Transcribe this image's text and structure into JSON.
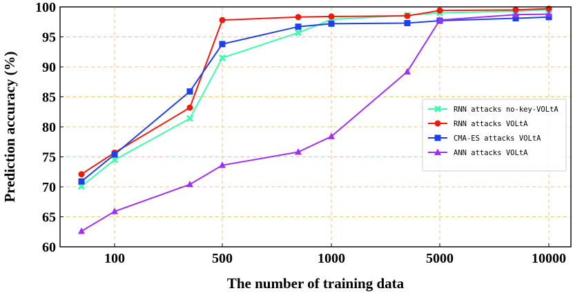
{
  "chart_data": {
    "type": "line",
    "xlabel": "The number of training data",
    "ylabel": "Prediction accuracy (%)",
    "ylim": [
      60,
      100
    ],
    "y_ticks": [
      60,
      65,
      70,
      75,
      80,
      85,
      90,
      95,
      100
    ],
    "x_tick_labels": [
      "100",
      "500",
      "1000",
      "5000",
      "10000"
    ],
    "x_positions": [
      "50",
      "100",
      "300",
      "500",
      "800",
      "1000",
      "3000",
      "5000",
      "8000",
      "10000"
    ],
    "grid": "dashed orange",
    "legend_position": "right",
    "series": [
      {
        "name": "RNN attacks no-key-VOLtA",
        "color": "#3dfcac",
        "marker": "x",
        "values": [
          70.1,
          74.5,
          81.4,
          91.5,
          95.7,
          97.9,
          98.6,
          99.0,
          99.3,
          99.5
        ]
      },
      {
        "name": "RNN attacks VOLtA",
        "color": "#ef1a0e",
        "marker": "circle",
        "values": [
          72.1,
          75.7,
          83.2,
          97.8,
          98.3,
          98.4,
          98.5,
          99.4,
          99.5,
          99.7
        ]
      },
      {
        "name": "CMA-ES attacks VOLtA",
        "color": "#1e40e8",
        "marker": "square",
        "values": [
          70.9,
          75.4,
          85.9,
          93.8,
          96.7,
          97.2,
          97.3,
          97.7,
          98.1,
          98.3
        ]
      },
      {
        "name": "ANN attacks VOLtA",
        "color": "#a12ff0",
        "marker": "triangle",
        "values": [
          62.6,
          65.9,
          70.4,
          73.6,
          75.8,
          78.4,
          89.2,
          97.8,
          98.7,
          98.8
        ]
      }
    ]
  }
}
